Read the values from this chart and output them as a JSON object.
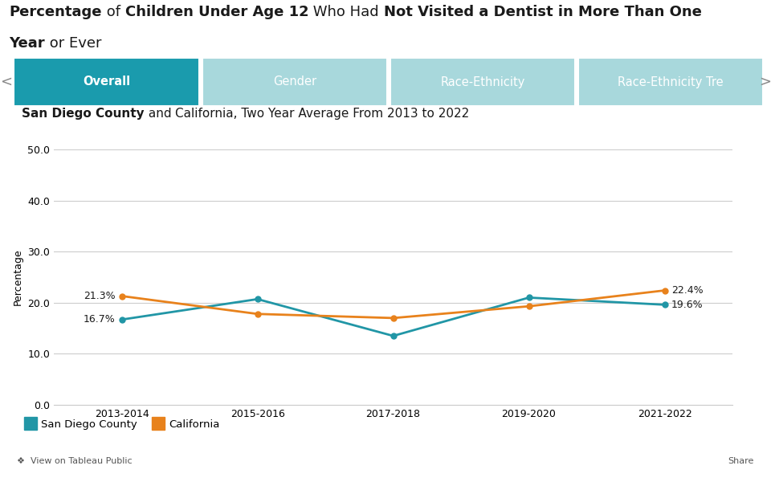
{
  "x_labels": [
    "2013-2014",
    "2015-2016",
    "2017-2018",
    "2019-2020",
    "2021-2022"
  ],
  "san_diego_values": [
    16.7,
    20.7,
    13.5,
    21.0,
    19.6
  ],
  "california_values": [
    21.3,
    17.8,
    17.0,
    19.3,
    22.4
  ],
  "san_diego_color": "#2196A6",
  "california_color": "#E8821C",
  "ylabel": "Percentage",
  "ylim": [
    0,
    50
  ],
  "yticks": [
    0.0,
    10.0,
    20.0,
    30.0,
    40.0,
    50.0
  ],
  "grid_color": "#CCCCCC",
  "background_color": "#FFFFFF",
  "tab_active_color": "#1A9BAD",
  "tab_inactive_color": "#A8D8DC",
  "tab_labels": [
    "Overall",
    "Gender",
    "Race-Ethnicity",
    "Race-Ethnicity Tre"
  ],
  "legend_labels": [
    "San Diego County",
    "California"
  ],
  "annotation_fontsize": 9,
  "axis_label_fontsize": 9,
  "tick_label_fontsize": 9,
  "title_segments_line1": [
    [
      "Percentage",
      true
    ],
    [
      " of ",
      false
    ],
    [
      "Children Under Age 12",
      true
    ],
    [
      " Who Had ",
      false
    ],
    [
      "Not Visited a Dentist in More Than One",
      true
    ]
  ],
  "title_segments_line2": [
    [
      "Year",
      true
    ],
    [
      " or Ever",
      false
    ]
  ],
  "subtitle_segments": [
    [
      "San Diego County",
      true
    ],
    [
      " and ",
      false
    ],
    [
      "California, Two Year Average From 2013 to 2022",
      false
    ]
  ]
}
